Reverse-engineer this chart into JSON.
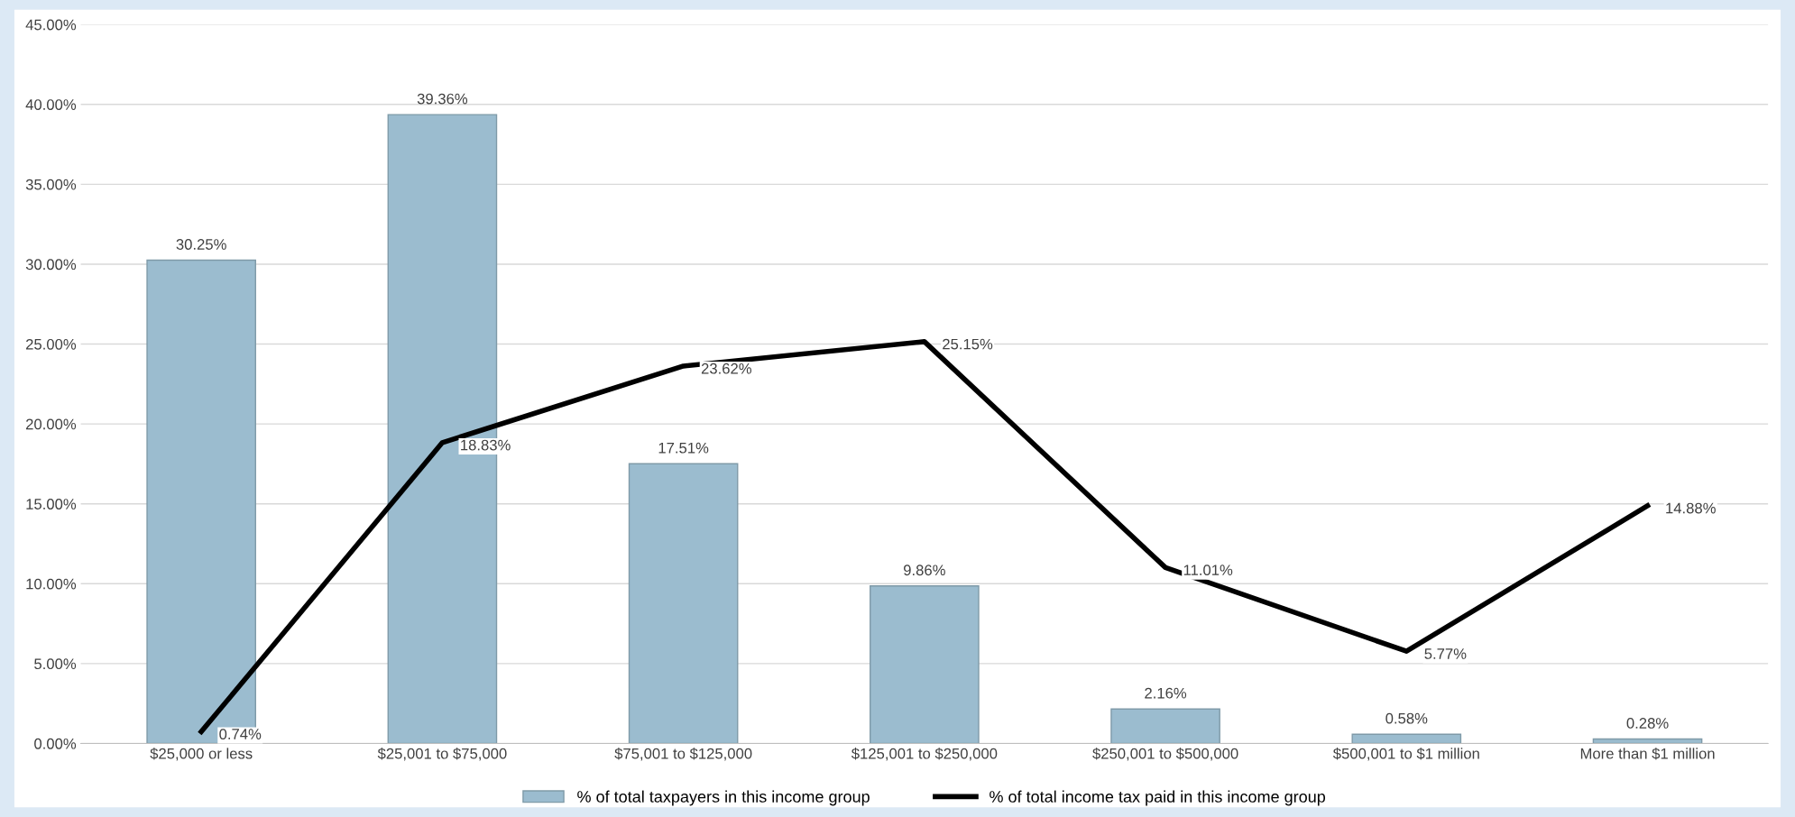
{
  "chart_data": {
    "type": "bar",
    "categories": [
      "$25,000 or less",
      "$25,001 to $75,000",
      "$75,001 to $125,000",
      "$125,001 to $250,000",
      "$250,001 to $500,000",
      "$500,001 to $1 million",
      "More than $1 million"
    ],
    "series": [
      {
        "name": "% of total taxpayers in this income group",
        "color": "#9bbccf",
        "values": [
          30.25,
          39.36,
          17.51,
          9.86,
          2.16,
          0.58,
          0.28
        ],
        "value_labels": [
          "30.25%",
          "39.36%",
          "17.51%",
          "9.86%",
          "2.16%",
          "0.58%",
          "0.28%"
        ]
      },
      {
        "name": "% of total income tax paid in this income group",
        "type": "line",
        "color": "#000000",
        "values": [
          0.74,
          18.83,
          23.62,
          25.15,
          11.01,
          5.77,
          14.88
        ],
        "value_labels": [
          "0.74%",
          "18.83%",
          "23.62%",
          "25.15%",
          "11.01%",
          "5.77%",
          "14.88%"
        ]
      }
    ],
    "ylim": [
      0,
      45
    ],
    "yticks": [
      {
        "value": 0,
        "label": "0.00%"
      },
      {
        "value": 5,
        "label": "5.00%"
      },
      {
        "value": 10,
        "label": "10.00%"
      },
      {
        "value": 15,
        "label": "15.00%"
      },
      {
        "value": 20,
        "label": "20.00%"
      },
      {
        "value": 25,
        "label": "25.00%"
      },
      {
        "value": 30,
        "label": "30.00%"
      },
      {
        "value": 35,
        "label": "35.00%"
      },
      {
        "value": 40,
        "label": "40.00%"
      },
      {
        "value": 45,
        "label": "45.00%"
      }
    ],
    "grid": "y",
    "legend": "bottom",
    "marker": "none",
    "line_style": "solid"
  }
}
